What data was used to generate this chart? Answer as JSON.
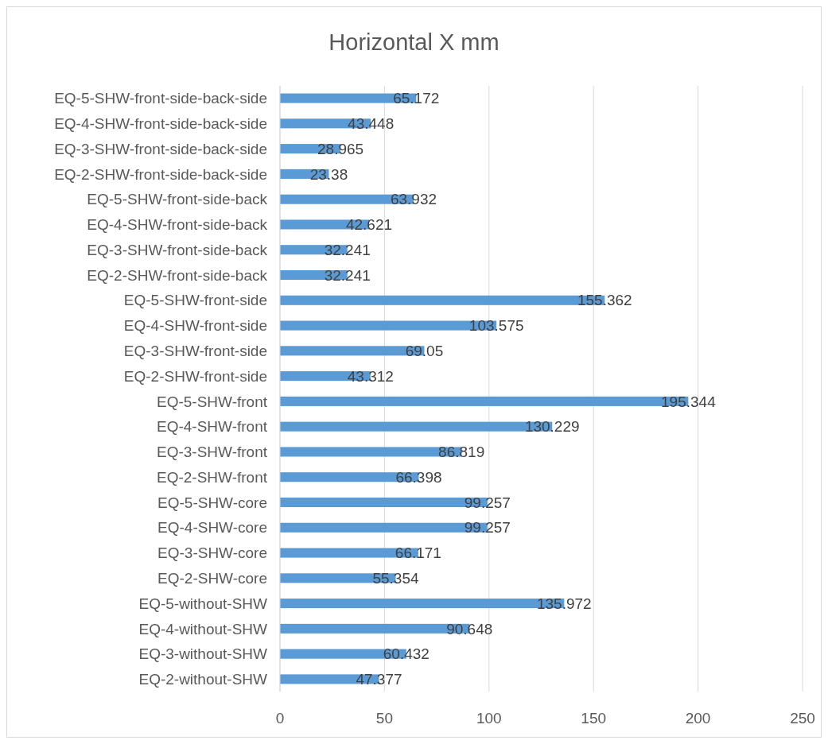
{
  "chart_data": {
    "type": "bar",
    "orientation": "horizontal",
    "title": "Horizontal X mm",
    "categories": [
      "EQ-5-SHW-front-side-back-side",
      "EQ-4-SHW-front-side-back-side",
      "EQ-3-SHW-front-side-back-side",
      "EQ-2-SHW-front-side-back-side",
      "EQ-5-SHW-front-side-back",
      "EQ-4-SHW-front-side-back",
      "EQ-3-SHW-front-side-back",
      "EQ-2-SHW-front-side-back",
      "EQ-5-SHW-front-side",
      "EQ-4-SHW-front-side",
      "EQ-3-SHW-front-side",
      "EQ-2-SHW-front-side",
      "EQ-5-SHW-front",
      "EQ-4-SHW-front",
      "EQ-3-SHW-front",
      "EQ-2-SHW-front",
      "EQ-5-SHW-core",
      "EQ-4-SHW-core",
      "EQ-3-SHW-core",
      "EQ-2-SHW-core",
      "EQ-5-without-SHW",
      "EQ-4-without-SHW",
      "EQ-3-without-SHW",
      "EQ-2-without-SHW"
    ],
    "values": [
      65.172,
      43.448,
      28.965,
      23.38,
      63.932,
      42.621,
      32.241,
      32.241,
      155.362,
      103.575,
      69.05,
      43.312,
      195.344,
      130.229,
      86.819,
      66.398,
      99.257,
      99.257,
      66.171,
      55.354,
      135.972,
      90.648,
      60.432,
      47.377
    ],
    "color": "#5b9bd5",
    "data_labels": true,
    "xlim": [
      0,
      250
    ],
    "xticks": [
      0,
      50,
      100,
      150,
      200,
      250
    ],
    "grid": "x"
  }
}
